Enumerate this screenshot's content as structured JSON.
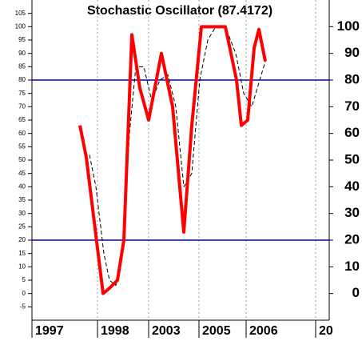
{
  "chart_data": {
    "type": "line",
    "title": "Stochastic Oscillator (87.4172)",
    "series": [
      {
        "color": "#ff0000",
        "style": "solid",
        "x": [
          6.0,
          6.8,
          8.9,
          9.7,
          10.7,
          11.5,
          12.5,
          13.5,
          14.6,
          16.2,
          17.6,
          19.0,
          20.0,
          21.2,
          24.2,
          25.6,
          26.2,
          27.0,
          27.8,
          28.4,
          29.2
        ],
        "values": [
          63,
          51,
          0,
          2,
          5,
          20,
          97,
          77,
          65,
          90,
          70,
          23,
          63,
          100,
          100,
          80,
          63,
          65,
          92,
          99,
          87
        ]
      },
      {
        "color": "#000000",
        "style": "dashed",
        "x": [
          7.2,
          8.0,
          9.0,
          9.7,
          10.5,
          11.5,
          12.2,
          13.0,
          14.0,
          15.0,
          16.0,
          17.0,
          18.0,
          19.0,
          20.0,
          21.0,
          22.0,
          23.0,
          24.2,
          25.5,
          26.5,
          27.5,
          28.5,
          29.2
        ],
        "values": [
          52,
          40,
          15,
          5,
          3,
          20,
          60,
          85,
          85,
          72,
          80,
          82,
          70,
          40,
          45,
          80,
          95,
          100,
          100,
          90,
          75,
          70,
          80,
          87
        ]
      }
    ],
    "xlim": [
      0,
      37.2
    ],
    "xticks": [
      {
        "value": 0,
        "label": "1997"
      },
      {
        "value": 8.2,
        "label": "1998"
      },
      {
        "value": 14.6,
        "label": "2003"
      },
      {
        "value": 20.9,
        "label": "2005"
      },
      {
        "value": 26.8,
        "label": "2006"
      },
      {
        "value": 35.5,
        "label": "20"
      }
    ],
    "ylim": [
      -10,
      110
    ],
    "yticks": [
      -5,
      0,
      5,
      10,
      15,
      20,
      25,
      30,
      35,
      40,
      45,
      50,
      55,
      60,
      65,
      70,
      75,
      80,
      85,
      90,
      95,
      100,
      105
    ],
    "y2lim": [
      -10,
      110
    ],
    "y2ticks": [
      0,
      10,
      20,
      30,
      40,
      50,
      60,
      70,
      80,
      90,
      100
    ],
    "hlines": [
      80,
      20
    ],
    "hline_color": "#0000cc",
    "grid": true
  }
}
